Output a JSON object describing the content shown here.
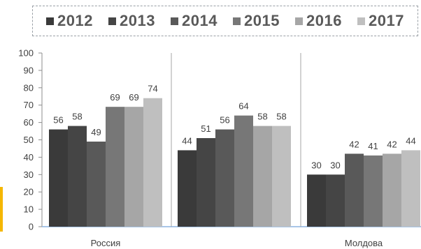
{
  "chart_data": {
    "type": "bar",
    "categories": [
      "Россия",
      "",
      "Молдова"
    ],
    "series": [
      {
        "name": "2012",
        "values": [
          56,
          44,
          30
        ],
        "color": "#3a3a3a"
      },
      {
        "name": "2013",
        "values": [
          58,
          51,
          30
        ],
        "color": "#454545"
      },
      {
        "name": "2014",
        "values": [
          49,
          56,
          42
        ],
        "color": "#595959"
      },
      {
        "name": "2015",
        "values": [
          69,
          64,
          41
        ],
        "color": "#777777"
      },
      {
        "name": "2016",
        "values": [
          69,
          58,
          42
        ],
        "color": "#a6a6a6"
      },
      {
        "name": "2017",
        "values": [
          74,
          58,
          44
        ],
        "color": "#bfbfbf"
      }
    ],
    "y_ticks": [
      "0",
      "10",
      "20",
      "30",
      "40",
      "50",
      "60",
      "70",
      "80",
      "90",
      "100"
    ],
    "ylim": [
      0,
      100
    ],
    "grid": false,
    "legend_position": "top"
  }
}
